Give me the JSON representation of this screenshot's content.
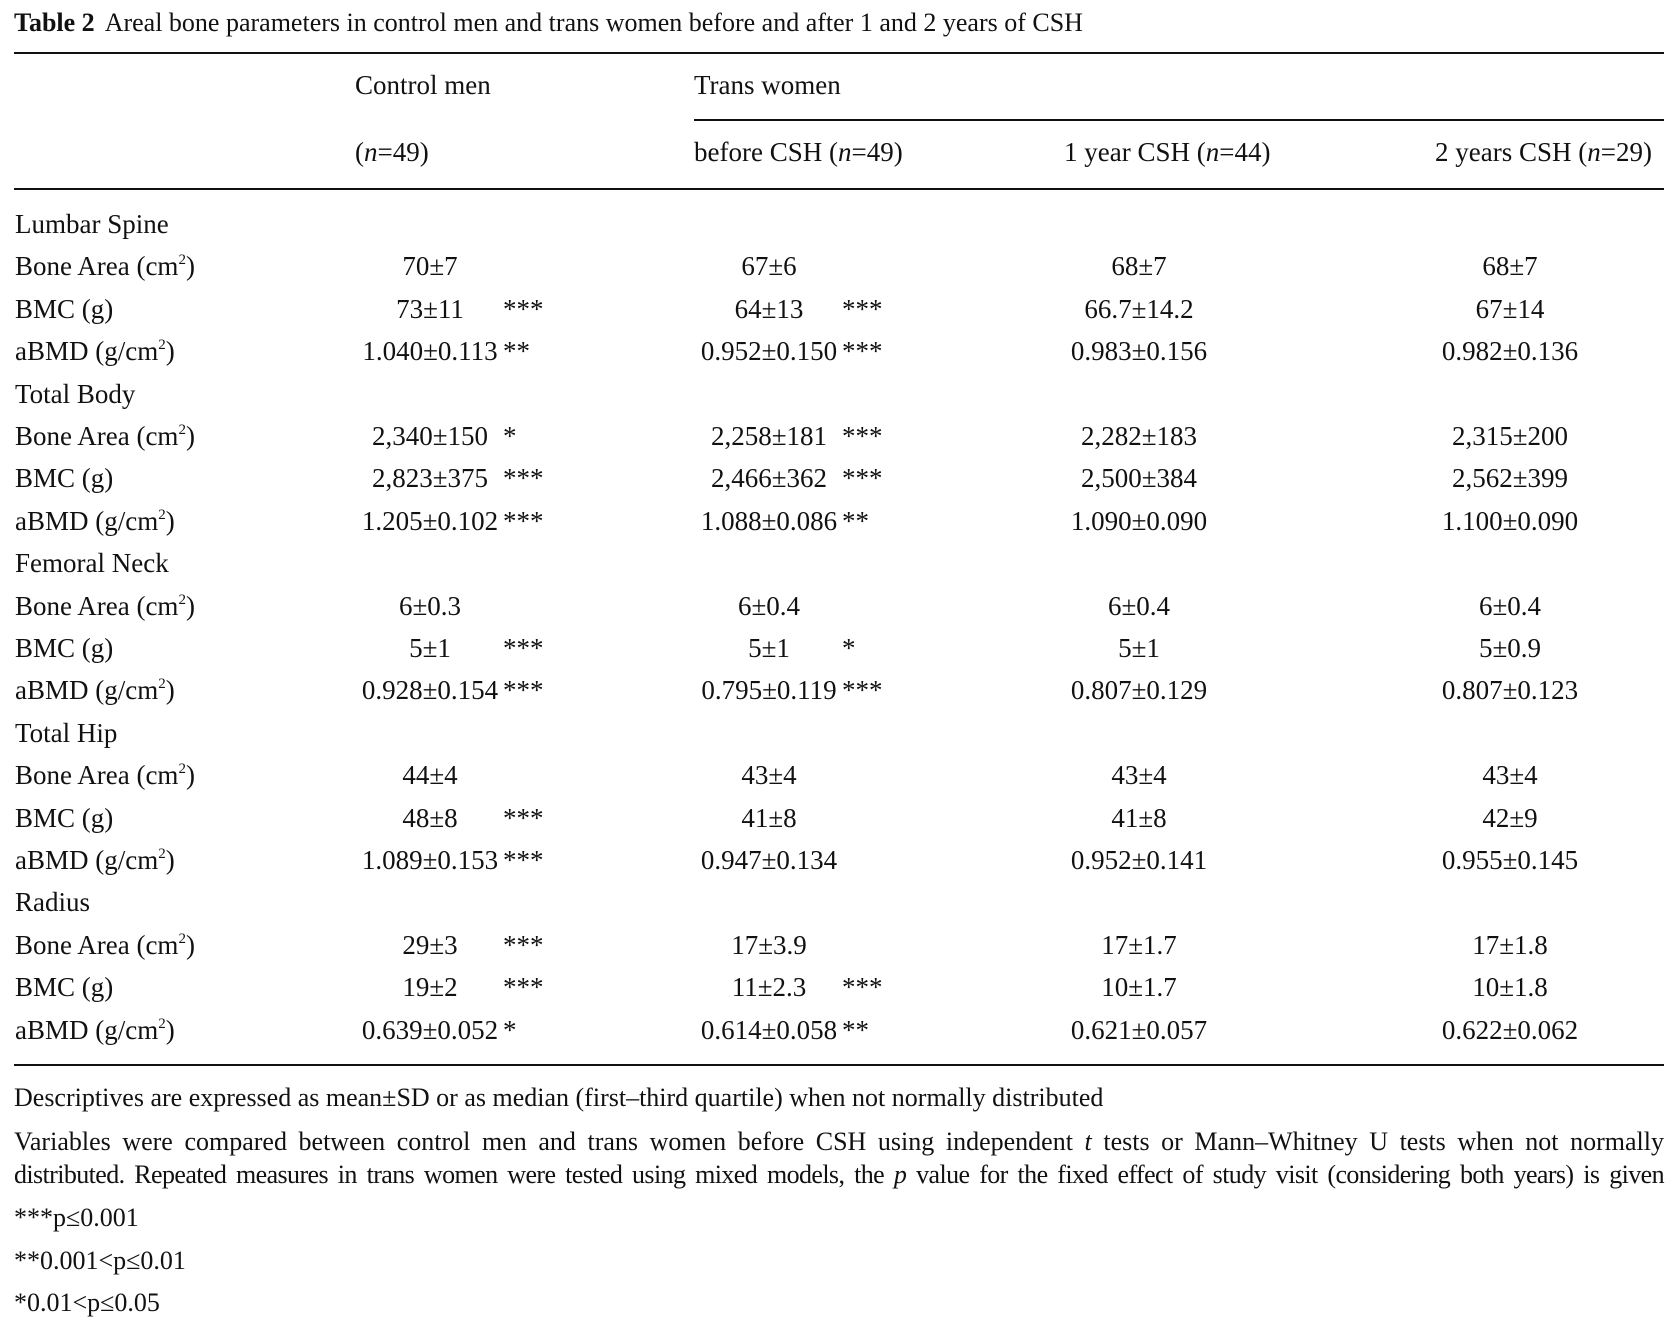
{
  "title": {
    "label": "Table 2",
    "text": "Areal bone parameters in control men and trans women before and after 1 and 2 years of CSH"
  },
  "header": {
    "group1": "Control men",
    "group2": "Trans women",
    "cols": [
      {
        "pre": "(",
        "n": "n",
        "post": "=49)"
      },
      {
        "pre": "before CSH (",
        "n": "n",
        "post": "=49)"
      },
      {
        "pre": "1 year CSH (",
        "n": "n",
        "post": "=44)"
      },
      {
        "pre": "2 years CSH (",
        "n": "n",
        "post": "=29)"
      }
    ]
  },
  "sections": [
    {
      "name": "Lumbar Spine",
      "rows": [
        {
          "label": "Bone Area (cm",
          "sup": "2",
          "tail": ")",
          "cells": [
            {
              "v": "70±7",
              "s": ""
            },
            {
              "v": "67±6",
              "s": ""
            },
            {
              "v": "68±7",
              "s": ""
            },
            {
              "v": "68±7",
              "s": ""
            }
          ]
        },
        {
          "label": "BMC (g)",
          "sup": "",
          "tail": "",
          "cells": [
            {
              "v": "73±11",
              "s": "***"
            },
            {
              "v": "64±13",
              "s": "***"
            },
            {
              "v": "66.7±14.2",
              "s": ""
            },
            {
              "v": "67±14",
              "s": ""
            }
          ]
        },
        {
          "label": "aBMD (g/cm",
          "sup": "2",
          "tail": ")",
          "cells": [
            {
              "v": "1.040±0.113",
              "s": "**"
            },
            {
              "v": "0.952±0.150",
              "s": "***"
            },
            {
              "v": "0.983±0.156",
              "s": ""
            },
            {
              "v": "0.982±0.136",
              "s": ""
            }
          ]
        }
      ]
    },
    {
      "name": "Total Body",
      "rows": [
        {
          "label": "Bone Area (cm",
          "sup": "2",
          "tail": ")",
          "cells": [
            {
              "v": "2,340±150",
              "s": "*"
            },
            {
              "v": "2,258±181",
              "s": "***"
            },
            {
              "v": "2,282±183",
              "s": ""
            },
            {
              "v": "2,315±200",
              "s": ""
            }
          ]
        },
        {
          "label": "BMC (g)",
          "sup": "",
          "tail": "",
          "cells": [
            {
              "v": "2,823±375",
              "s": "***"
            },
            {
              "v": "2,466±362",
              "s": "***"
            },
            {
              "v": "2,500±384",
              "s": ""
            },
            {
              "v": "2,562±399",
              "s": ""
            }
          ]
        },
        {
          "label": "aBMD (g/cm",
          "sup": "2",
          "tail": ")",
          "cells": [
            {
              "v": "1.205±0.102",
              "s": "***"
            },
            {
              "v": "1.088±0.086",
              "s": "**"
            },
            {
              "v": "1.090±0.090",
              "s": ""
            },
            {
              "v": "1.100±0.090",
              "s": ""
            }
          ]
        }
      ]
    },
    {
      "name": "Femoral Neck",
      "rows": [
        {
          "label": "Bone Area (cm",
          "sup": "2",
          "tail": ")",
          "cells": [
            {
              "v": "6±0.3",
              "s": ""
            },
            {
              "v": "6±0.4",
              "s": ""
            },
            {
              "v": "6±0.4",
              "s": ""
            },
            {
              "v": "6±0.4",
              "s": ""
            }
          ]
        },
        {
          "label": "BMC (g)",
          "sup": "",
          "tail": "",
          "cells": [
            {
              "v": "5±1",
              "s": "***"
            },
            {
              "v": "5±1",
              "s": "*"
            },
            {
              "v": "5±1",
              "s": ""
            },
            {
              "v": "5±0.9",
              "s": ""
            }
          ]
        },
        {
          "label": "aBMD (g/cm",
          "sup": "2",
          "tail": ")",
          "cells": [
            {
              "v": "0.928±0.154",
              "s": "***"
            },
            {
              "v": "0.795±0.119",
              "s": "***"
            },
            {
              "v": "0.807±0.129",
              "s": ""
            },
            {
              "v": "0.807±0.123",
              "s": ""
            }
          ]
        }
      ]
    },
    {
      "name": "Total Hip",
      "rows": [
        {
          "label": "Bone Area (cm",
          "sup": "2",
          "tail": ")",
          "cells": [
            {
              "v": "44±4",
              "s": ""
            },
            {
              "v": "43±4",
              "s": ""
            },
            {
              "v": "43±4",
              "s": ""
            },
            {
              "v": "43±4",
              "s": ""
            }
          ]
        },
        {
          "label": "BMC (g)",
          "sup": "",
          "tail": "",
          "cells": [
            {
              "v": "48±8",
              "s": "***"
            },
            {
              "v": "41±8",
              "s": ""
            },
            {
              "v": "41±8",
              "s": ""
            },
            {
              "v": "42±9",
              "s": ""
            }
          ]
        },
        {
          "label": "aBMD (g/cm",
          "sup": "2",
          "tail": ")",
          "cells": [
            {
              "v": "1.089±0.153",
              "s": "***"
            },
            {
              "v": "0.947±0.134",
              "s": ""
            },
            {
              "v": "0.952±0.141",
              "s": ""
            },
            {
              "v": "0.955±0.145",
              "s": ""
            }
          ]
        }
      ]
    },
    {
      "name": "Radius",
      "rows": [
        {
          "label": "Bone Area (cm",
          "sup": "2",
          "tail": ")",
          "cells": [
            {
              "v": "29±3",
              "s": "***"
            },
            {
              "v": "17±3.9",
              "s": ""
            },
            {
              "v": "17±1.7",
              "s": ""
            },
            {
              "v": "17±1.8",
              "s": ""
            }
          ]
        },
        {
          "label": "BMC (g)",
          "sup": "",
          "tail": "",
          "cells": [
            {
              "v": "19±2",
              "s": "***"
            },
            {
              "v": "11±2.3",
              "s": "***"
            },
            {
              "v": "10±1.7",
              "s": ""
            },
            {
              "v": "10±1.8",
              "s": ""
            }
          ]
        },
        {
          "label": "aBMD (g/cm",
          "sup": "2",
          "tail": ")",
          "cells": [
            {
              "v": "0.639±0.052",
              "s": "*"
            },
            {
              "v": "0.614±0.058",
              "s": "**"
            },
            {
              "v": "0.621±0.057",
              "s": ""
            },
            {
              "v": "0.622±0.062",
              "s": ""
            }
          ]
        }
      ]
    }
  ],
  "notes": {
    "descriptives": "Descriptives are expressed as mean±SD or as median (first–third quartile) when not normally distributed",
    "line1_a": "Variables were compared between control men and trans women before CSH using independent ",
    "line1_t": "t",
    "line1_b": " tests or Mann–Whitney U tests when not normally",
    "line2_a": "distributed. Repeated measures in trans women were tested using mixed models, the ",
    "line2_p": "p",
    "line2_b": " value for the fixed effect of study visit (considering both years) is given",
    "sig3": "***p≤0.001",
    "sig2": "**0.001<p≤0.01",
    "sig1": "*0.01<p≤0.05"
  }
}
